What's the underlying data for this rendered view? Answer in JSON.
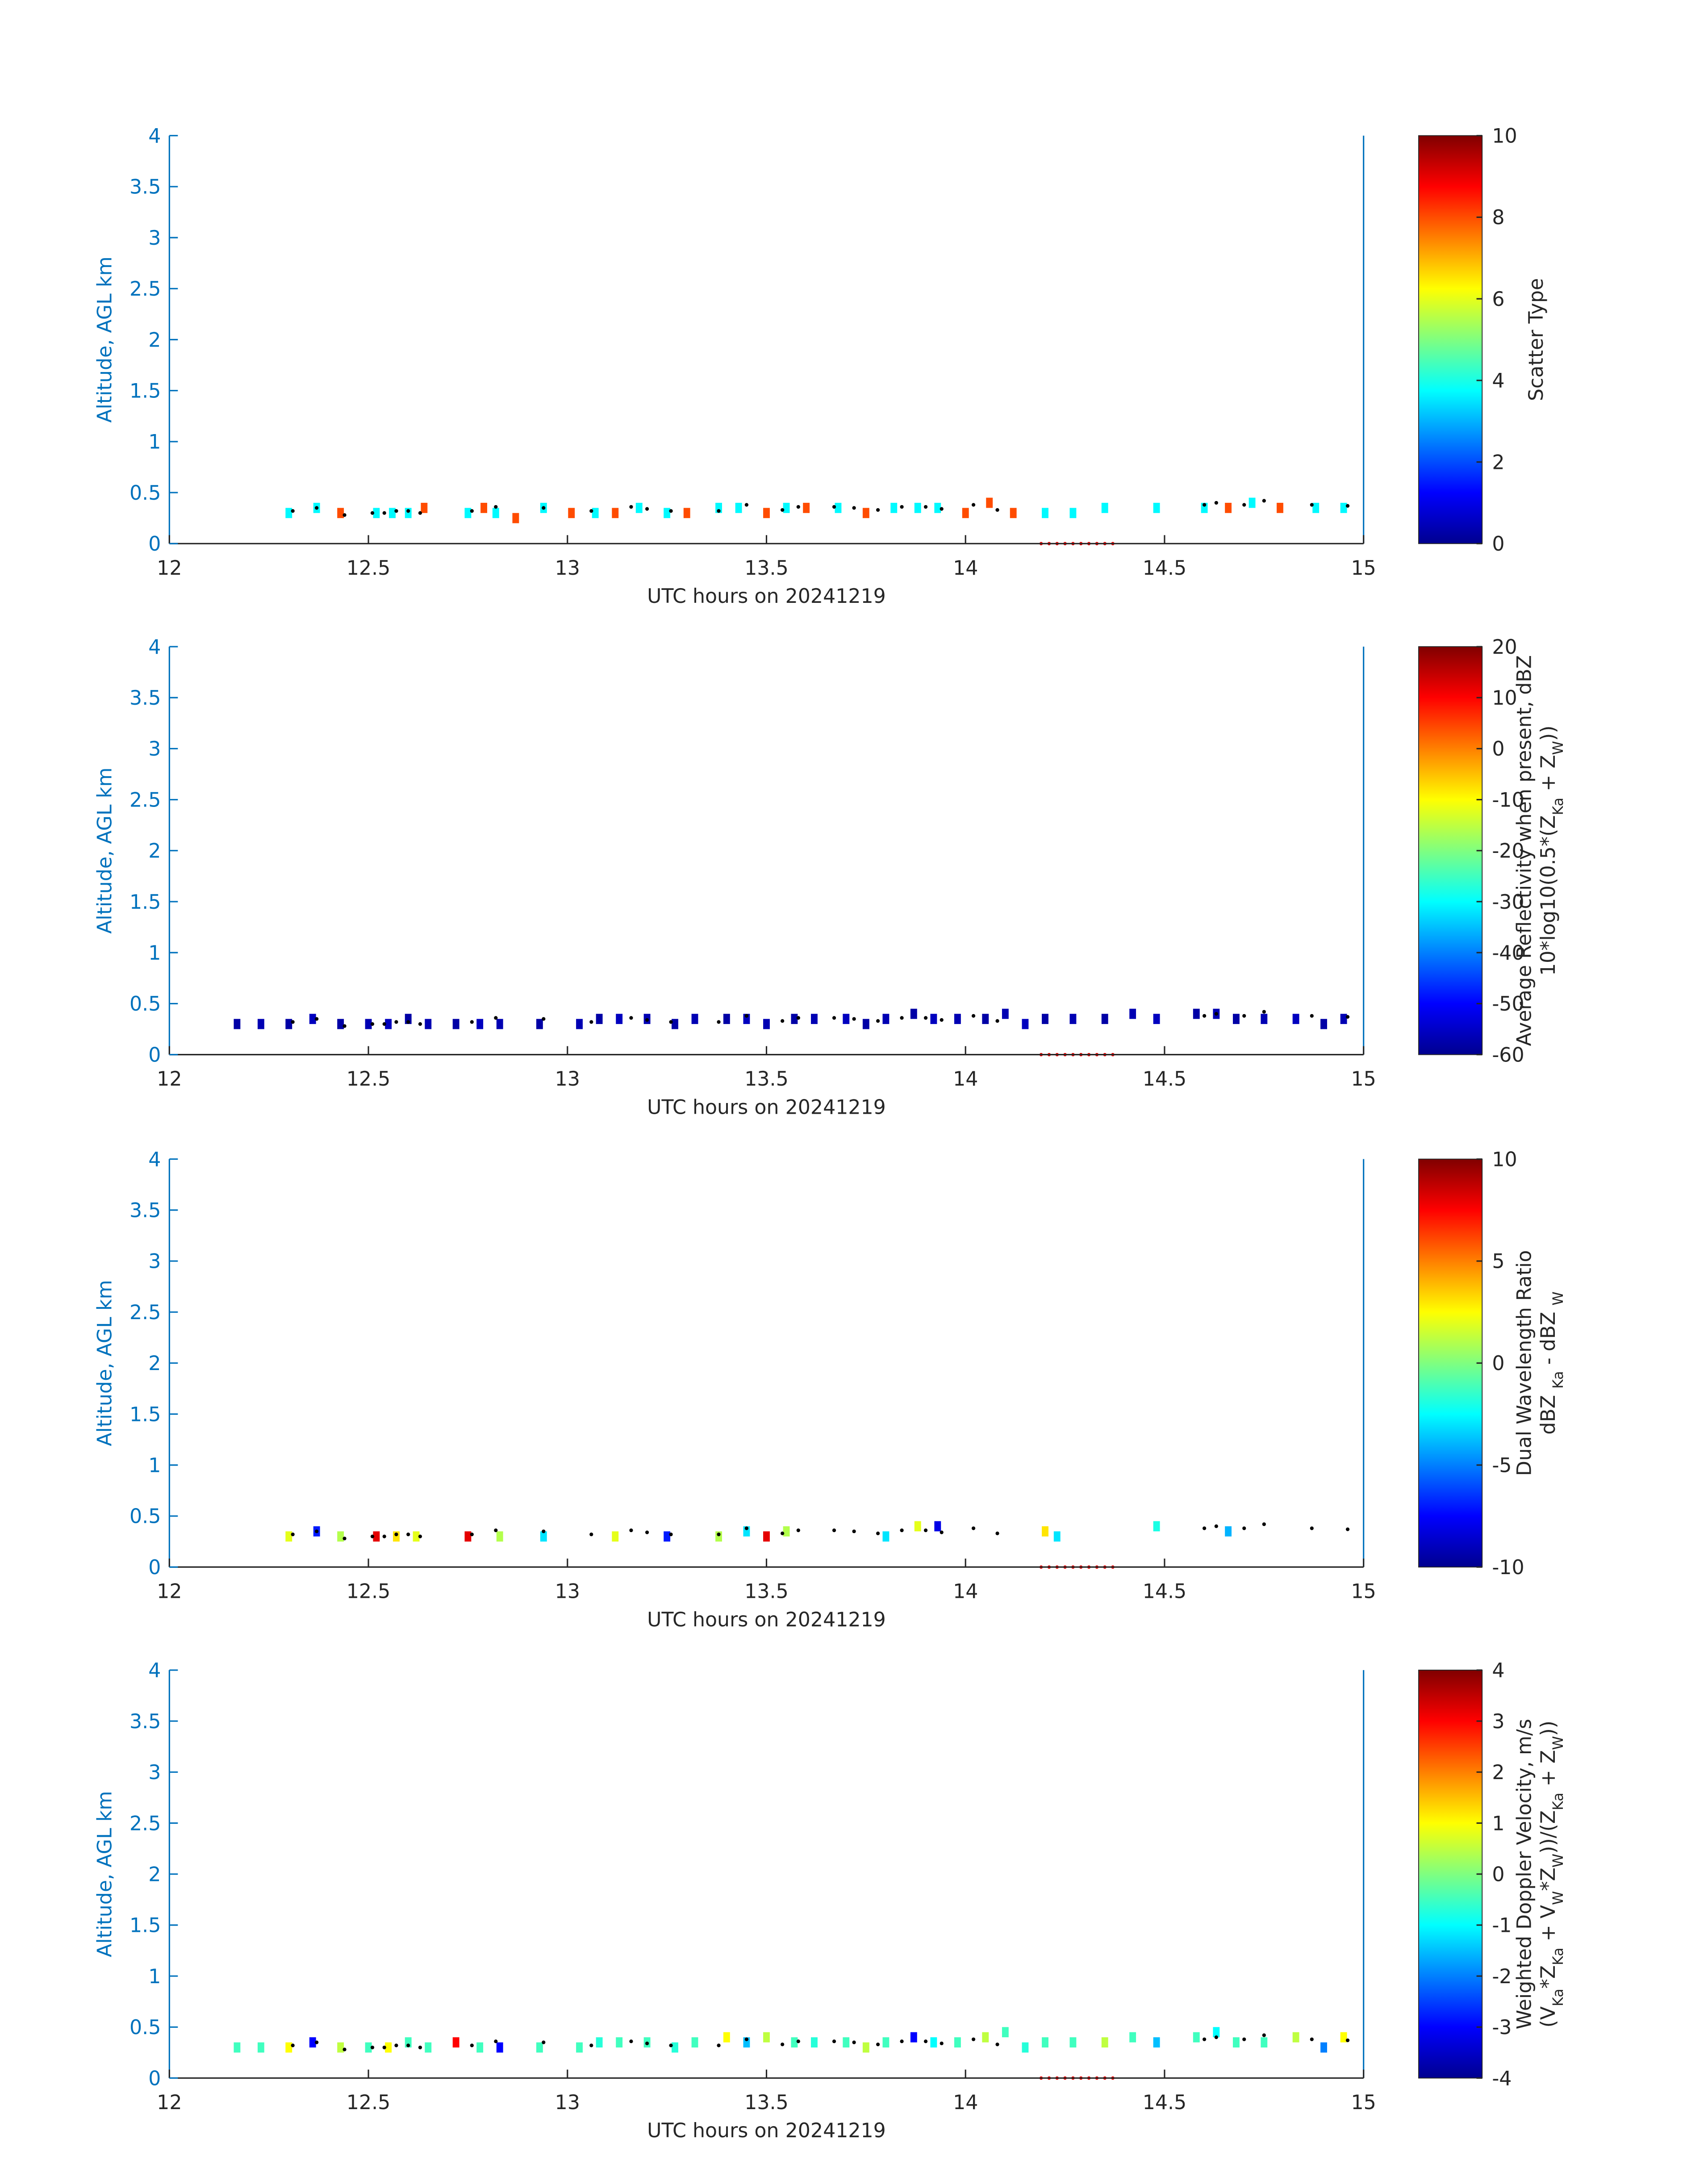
{
  "chart_data": [
    {
      "type": "heatmap",
      "xlabel": "UTC hours on 20241219",
      "ylabel": "Altitude, AGL km",
      "xlim": [
        12,
        15
      ],
      "ylim": [
        0,
        4
      ],
      "xticks": [
        12,
        12.5,
        13,
        13.5,
        14,
        14.5,
        15
      ],
      "yticks": [
        0,
        0.5,
        1,
        1.5,
        2,
        2.5,
        3,
        3.5,
        4
      ],
      "colormap": "jet",
      "clim": [
        0,
        10
      ],
      "cticks": [
        0,
        2,
        4,
        6,
        8,
        10
      ],
      "colorbar_label": [
        [
          {
            "text": "Scatter Type"
          }
        ]
      ],
      "cells": {
        "x": [
          12.3,
          12.37,
          12.43,
          12.52,
          12.56,
          12.6,
          12.64,
          12.75,
          12.79,
          12.82,
          12.87,
          12.94,
          13.01,
          13.07,
          13.12,
          13.18,
          13.25,
          13.3,
          13.38,
          13.43,
          13.5,
          13.55,
          13.6,
          13.68,
          13.75,
          13.82,
          13.88,
          13.93,
          14.0,
          14.06,
          14.12,
          14.2,
          14.27,
          14.35,
          14.48,
          14.6,
          14.66,
          14.72,
          14.79,
          14.88,
          14.95
        ],
        "y": [
          0.3,
          0.35,
          0.3,
          0.3,
          0.3,
          0.3,
          0.35,
          0.3,
          0.35,
          0.3,
          0.25,
          0.35,
          0.3,
          0.3,
          0.3,
          0.35,
          0.3,
          0.3,
          0.35,
          0.35,
          0.3,
          0.35,
          0.35,
          0.35,
          0.3,
          0.35,
          0.35,
          0.35,
          0.3,
          0.4,
          0.3,
          0.3,
          0.3,
          0.35,
          0.35,
          0.35,
          0.35,
          0.4,
          0.35,
          0.35,
          0.35
        ],
        "values": [
          3.7,
          3.7,
          8,
          3.7,
          3.7,
          3.7,
          8,
          3.7,
          8,
          3.7,
          8,
          3.7,
          8,
          3.7,
          8,
          3.7,
          3.7,
          8,
          3.7,
          3.7,
          8,
          3.7,
          8,
          3.7,
          8,
          3.7,
          3.7,
          3.7,
          8,
          8,
          8,
          3.7,
          3.7,
          3.7,
          3.7,
          3.7,
          8,
          3.7,
          8,
          3.7,
          3.7
        ]
      },
      "points": {
        "x": [
          12.31,
          12.37,
          12.44,
          12.51,
          12.54,
          12.57,
          12.6,
          12.63,
          12.76,
          12.82,
          12.94,
          13.06,
          13.16,
          13.2,
          13.26,
          13.38,
          13.45,
          13.54,
          13.58,
          13.67,
          13.72,
          13.78,
          13.84,
          13.9,
          13.94,
          14.02,
          14.08,
          14.6,
          14.63,
          14.7,
          14.75,
          14.87,
          14.96
        ],
        "y": [
          0.32,
          0.35,
          0.28,
          0.3,
          0.3,
          0.32,
          0.32,
          0.3,
          0.32,
          0.36,
          0.35,
          0.32,
          0.36,
          0.34,
          0.32,
          0.32,
          0.38,
          0.33,
          0.36,
          0.36,
          0.35,
          0.33,
          0.36,
          0.36,
          0.34,
          0.38,
          0.33,
          0.38,
          0.4,
          0.38,
          0.42,
          0.38,
          0.37
        ]
      },
      "markers": {
        "x": [
          14.19,
          14.21,
          14.23,
          14.25,
          14.27,
          14.29,
          14.31,
          14.33,
          14.35,
          14.37
        ],
        "y": [
          0,
          0,
          0,
          0,
          0,
          0,
          0,
          0,
          0,
          0
        ]
      }
    },
    {
      "type": "heatmap",
      "xlabel": "UTC hours on 20241219",
      "ylabel": "Altitude, AGL km",
      "xlim": [
        12,
        15
      ],
      "ylim": [
        0,
        4
      ],
      "xticks": [
        12,
        12.5,
        13,
        13.5,
        14,
        14.5,
        15
      ],
      "yticks": [
        0,
        0.5,
        1,
        1.5,
        2,
        2.5,
        3,
        3.5,
        4
      ],
      "colormap": "jet",
      "clim": [
        -60,
        20
      ],
      "cticks": [
        -60,
        -50,
        -40,
        -30,
        -20,
        -10,
        0,
        10,
        20
      ],
      "colorbar_label": [
        [
          {
            "text": "Average Reflectivity when present, dBZ"
          }
        ],
        [
          {
            "text": "10*log10(0.5*(Z"
          },
          {
            "text": "Ka",
            "sub": true
          },
          {
            "text": " + Z"
          },
          {
            "text": "W",
            "sub": true
          },
          {
            "text": "))"
          }
        ]
      ],
      "cells": {
        "x": [
          12.17,
          12.23,
          12.3,
          12.36,
          12.43,
          12.5,
          12.55,
          12.6,
          12.65,
          12.72,
          12.78,
          12.83,
          12.93,
          13.03,
          13.08,
          13.13,
          13.2,
          13.27,
          13.32,
          13.4,
          13.45,
          13.5,
          13.57,
          13.62,
          13.7,
          13.75,
          13.8,
          13.87,
          13.92,
          13.98,
          14.05,
          14.1,
          14.15,
          14.2,
          14.27,
          14.35,
          14.42,
          14.48,
          14.58,
          14.63,
          14.68,
          14.75,
          14.83,
          14.9,
          14.95
        ],
        "y": [
          0.3,
          0.3,
          0.3,
          0.35,
          0.3,
          0.3,
          0.3,
          0.35,
          0.3,
          0.3,
          0.3,
          0.3,
          0.3,
          0.3,
          0.35,
          0.35,
          0.35,
          0.3,
          0.35,
          0.35,
          0.35,
          0.3,
          0.35,
          0.35,
          0.35,
          0.3,
          0.35,
          0.4,
          0.35,
          0.35,
          0.35,
          0.4,
          0.3,
          0.35,
          0.35,
          0.35,
          0.4,
          0.35,
          0.4,
          0.4,
          0.35,
          0.35,
          0.35,
          0.3,
          0.35
        ],
        "values": [
          -57,
          -56,
          -57,
          -55,
          -57,
          -56,
          -55,
          -57,
          -56,
          -57,
          -55,
          -56,
          -57,
          -56,
          -57,
          -55,
          -56,
          -57,
          -56,
          -57,
          -55,
          -56,
          -57,
          -56,
          -55,
          -57,
          -56,
          -57,
          -55,
          -56,
          -57,
          -56,
          -55,
          -57,
          -56,
          -57,
          -56,
          -55,
          -57,
          -56,
          -57,
          -56,
          -55,
          -57,
          -56
        ]
      },
      "points": {
        "x": [
          12.31,
          12.37,
          12.44,
          12.51,
          12.54,
          12.57,
          12.6,
          12.63,
          12.76,
          12.82,
          12.94,
          13.06,
          13.16,
          13.2,
          13.26,
          13.38,
          13.45,
          13.54,
          13.58,
          13.67,
          13.72,
          13.78,
          13.84,
          13.9,
          13.94,
          14.02,
          14.08,
          14.6,
          14.63,
          14.7,
          14.75,
          14.87,
          14.96
        ],
        "y": [
          0.32,
          0.35,
          0.28,
          0.3,
          0.3,
          0.32,
          0.32,
          0.3,
          0.32,
          0.36,
          0.35,
          0.32,
          0.36,
          0.34,
          0.32,
          0.32,
          0.38,
          0.33,
          0.36,
          0.36,
          0.35,
          0.33,
          0.36,
          0.36,
          0.34,
          0.38,
          0.33,
          0.38,
          0.4,
          0.38,
          0.42,
          0.38,
          0.37
        ]
      },
      "markers": {
        "x": [
          14.19,
          14.21,
          14.23,
          14.25,
          14.27,
          14.29,
          14.31,
          14.33,
          14.35,
          14.37
        ],
        "y": [
          0,
          0,
          0,
          0,
          0,
          0,
          0,
          0,
          0,
          0
        ]
      }
    },
    {
      "type": "heatmap",
      "xlabel": "UTC hours on 20241219",
      "ylabel": "Altitude, AGL km",
      "xlim": [
        12,
        15
      ],
      "ylim": [
        0,
        4
      ],
      "xticks": [
        12,
        12.5,
        13,
        13.5,
        14,
        14.5,
        15
      ],
      "yticks": [
        0,
        0.5,
        1,
        1.5,
        2,
        2.5,
        3,
        3.5,
        4
      ],
      "colormap": "jet",
      "clim": [
        -10,
        10
      ],
      "cticks": [
        -10,
        -5,
        0,
        5,
        10
      ],
      "colorbar_label": [
        [
          {
            "text": "Dual Wavelength Ratio"
          }
        ],
        [
          {
            "text": "dBZ "
          },
          {
            "text": "Ka",
            "sub": true
          },
          {
            "text": " - dBZ "
          },
          {
            "text": "W",
            "sub": true
          }
        ]
      ],
      "cells": {
        "x": [
          12.3,
          12.37,
          12.43,
          12.52,
          12.57,
          12.62,
          12.75,
          12.83,
          12.94,
          13.12,
          13.25,
          13.38,
          13.45,
          13.5,
          13.55,
          13.8,
          13.88,
          13.93,
          14.2,
          14.23,
          14.48,
          14.66
        ],
        "y": [
          0.3,
          0.35,
          0.3,
          0.3,
          0.3,
          0.3,
          0.3,
          0.3,
          0.3,
          0.3,
          0.3,
          0.3,
          0.35,
          0.3,
          0.35,
          0.3,
          0.4,
          0.4,
          0.35,
          0.3,
          0.4,
          0.35
        ],
        "values": [
          2,
          -7,
          1,
          8,
          3,
          2,
          8,
          1,
          -3,
          2,
          -7,
          1,
          -3,
          8,
          1,
          -3,
          2,
          -8,
          3,
          -3,
          -2,
          -4
        ]
      },
      "points": {
        "x": [
          12.31,
          12.37,
          12.44,
          12.51,
          12.54,
          12.57,
          12.6,
          12.63,
          12.76,
          12.82,
          12.94,
          13.06,
          13.16,
          13.2,
          13.26,
          13.38,
          13.45,
          13.54,
          13.58,
          13.67,
          13.72,
          13.78,
          13.84,
          13.9,
          13.94,
          14.02,
          14.08,
          14.6,
          14.63,
          14.7,
          14.75,
          14.87,
          14.96
        ],
        "y": [
          0.32,
          0.35,
          0.28,
          0.3,
          0.3,
          0.32,
          0.32,
          0.3,
          0.32,
          0.36,
          0.35,
          0.32,
          0.36,
          0.34,
          0.32,
          0.32,
          0.38,
          0.33,
          0.36,
          0.36,
          0.35,
          0.33,
          0.36,
          0.36,
          0.34,
          0.38,
          0.33,
          0.38,
          0.4,
          0.38,
          0.42,
          0.38,
          0.37
        ]
      },
      "markers": {
        "x": [
          14.19,
          14.21,
          14.23,
          14.25,
          14.27,
          14.29,
          14.31,
          14.33,
          14.35,
          14.37
        ],
        "y": [
          0,
          0,
          0,
          0,
          0,
          0,
          0,
          0,
          0,
          0
        ]
      }
    },
    {
      "type": "heatmap",
      "xlabel": "UTC hours on 20241219",
      "ylabel": "Altitude, AGL km",
      "xlim": [
        12,
        15
      ],
      "ylim": [
        0,
        4
      ],
      "xticks": [
        12,
        12.5,
        13,
        13.5,
        14,
        14.5,
        15
      ],
      "yticks": [
        0,
        0.5,
        1,
        1.5,
        2,
        2.5,
        3,
        3.5,
        4
      ],
      "colormap": "jet",
      "clim": [
        -4,
        4
      ],
      "cticks": [
        -4,
        -3,
        -2,
        -1,
        0,
        1,
        2,
        3,
        4
      ],
      "colorbar_label": [
        [
          {
            "text": "Weighted Doppler Velocity, m/s"
          }
        ],
        [
          {
            "text": "(V"
          },
          {
            "text": "Ka",
            "sub": true
          },
          {
            "text": "*Z"
          },
          {
            "text": "Ka",
            "sub": true
          },
          {
            "text": " + V"
          },
          {
            "text": "W",
            "sub": true
          },
          {
            "text": "*Z"
          },
          {
            "text": "W",
            "sub": true
          },
          {
            "text": "))/(Z"
          },
          {
            "text": "Ka",
            "sub": true
          },
          {
            "text": " + Z"
          },
          {
            "text": "W",
            "sub": true
          },
          {
            "text": "))"
          }
        ]
      ],
      "cells": {
        "x": [
          12.17,
          12.23,
          12.3,
          12.36,
          12.43,
          12.5,
          12.55,
          12.6,
          12.65,
          12.72,
          12.78,
          12.83,
          12.93,
          13.03,
          13.08,
          13.13,
          13.2,
          13.27,
          13.32,
          13.4,
          13.45,
          13.5,
          13.57,
          13.62,
          13.7,
          13.75,
          13.8,
          13.87,
          13.92,
          13.98,
          14.05,
          14.1,
          14.15,
          14.2,
          14.27,
          14.35,
          14.42,
          14.48,
          14.58,
          14.63,
          14.68,
          14.75,
          14.83,
          14.9,
          14.95
        ],
        "y": [
          0.3,
          0.3,
          0.3,
          0.35,
          0.3,
          0.3,
          0.3,
          0.35,
          0.3,
          0.35,
          0.3,
          0.3,
          0.3,
          0.3,
          0.35,
          0.35,
          0.35,
          0.3,
          0.35,
          0.4,
          0.35,
          0.4,
          0.35,
          0.35,
          0.35,
          0.3,
          0.35,
          0.4,
          0.35,
          0.35,
          0.4,
          0.45,
          0.3,
          0.35,
          0.35,
          0.35,
          0.4,
          0.35,
          0.4,
          0.45,
          0.35,
          0.35,
          0.4,
          0.3,
          0.4
        ],
        "values": [
          -0.5,
          -0.5,
          1,
          -3,
          0.5,
          -0.5,
          1,
          -0.5,
          -0.5,
          3,
          -0.5,
          -3,
          -0.5,
          -0.5,
          -0.7,
          -0.5,
          -0.5,
          -0.7,
          -0.5,
          1,
          -1.5,
          0.5,
          -0.5,
          -0.7,
          -0.5,
          0.5,
          -0.5,
          -3,
          -1,
          -0.5,
          0.5,
          -0.5,
          -0.7,
          -0.5,
          -0.5,
          0.5,
          -0.5,
          -1.5,
          -0.5,
          -1,
          -0.5,
          -0.5,
          0.5,
          -2,
          1
        ]
      },
      "points": {
        "x": [
          12.31,
          12.37,
          12.44,
          12.51,
          12.54,
          12.57,
          12.6,
          12.63,
          12.76,
          12.82,
          12.94,
          13.06,
          13.16,
          13.2,
          13.26,
          13.38,
          13.45,
          13.54,
          13.58,
          13.67,
          13.72,
          13.78,
          13.84,
          13.9,
          13.94,
          14.02,
          14.08,
          14.6,
          14.63,
          14.7,
          14.75,
          14.87,
          14.96
        ],
        "y": [
          0.32,
          0.35,
          0.28,
          0.3,
          0.3,
          0.32,
          0.32,
          0.3,
          0.32,
          0.36,
          0.35,
          0.32,
          0.36,
          0.34,
          0.32,
          0.32,
          0.38,
          0.33,
          0.36,
          0.36,
          0.35,
          0.33,
          0.36,
          0.36,
          0.34,
          0.38,
          0.33,
          0.38,
          0.4,
          0.38,
          0.42,
          0.38,
          0.37
        ]
      },
      "markers": {
        "x": [
          14.19,
          14.21,
          14.23,
          14.25,
          14.27,
          14.29,
          14.31,
          14.33,
          14.35,
          14.37
        ],
        "y": [
          0,
          0,
          0,
          0,
          0,
          0,
          0,
          0,
          0,
          0
        ]
      }
    }
  ]
}
